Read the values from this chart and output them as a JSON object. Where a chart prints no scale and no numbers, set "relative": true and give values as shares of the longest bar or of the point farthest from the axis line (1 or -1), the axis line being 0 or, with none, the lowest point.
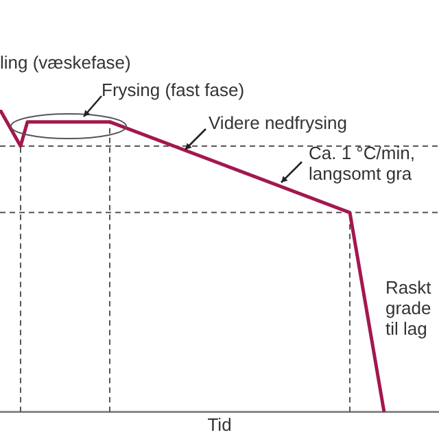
{
  "chart_data": {
    "type": "line",
    "relative": true,
    "xlabel": "Tid",
    "categories": [
      null,
      null,
      null,
      null,
      null,
      null,
      null,
      null,
      null,
      null,
      null,
      null,
      null,
      null,
      null,
      null,
      null,
      null,
      null,
      null,
      null,
      null,
      null,
      null,
      null,
      null,
      null,
      null,
      null,
      null,
      null,
      null,
      null,
      null,
      null,
      null,
      null,
      null,
      null,
      null,
      null,
      null,
      null,
      null,
      null,
      null,
      null,
      null,
      null,
      null,
      null,
      null,
      null,
      null,
      null,
      null,
      null,
      null,
      null,
      null,
      null,
      null,
      null,
      null,
      null
    ],
    "series": [
      {
        "color": "#a3174f",
        "values": [
          1,
          null,
          null,
          0.88,
          0.96,
          null,
          null,
          null,
          null,
          null,
          null,
          null,
          null,
          null,
          null,
          null,
          0.96,
          null,
          null,
          null,
          null,
          null,
          null,
          null,
          null,
          null,
          null,
          null,
          null,
          null,
          null,
          null,
          null,
          null,
          null,
          null,
          null,
          null,
          null,
          null,
          null,
          null,
          null,
          null,
          null,
          null,
          null,
          null,
          null,
          null,
          null,
          0.66,
          null,
          null,
          null,
          null,
          0,
          null,
          null,
          null,
          null,
          null,
          null,
          null,
          null
        ]
      }
    ],
    "ref_lines": [
      {
        "axis": "y",
        "value": 0.88,
        "line_style": "dashed"
      },
      {
        "axis": "y",
        "value": 0.66,
        "line_style": "dashed"
      }
    ],
    "annotations": [
      "ling (væskefase)",
      "Frysing (fast fase)",
      "Videre nedfrysing",
      "Ca. 1 °C/min,\nlangsomt gra",
      "Raskt\ngrade\ntil lag"
    ],
    "grid": false,
    "legend": false,
    "marker": "none",
    "line_style": "solid"
  }
}
